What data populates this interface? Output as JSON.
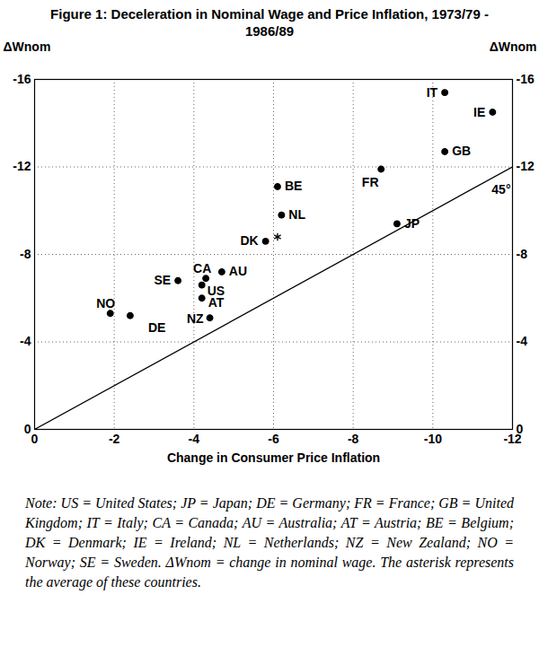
{
  "chart_data": {
    "type": "scatter",
    "title": "Figure 1: Deceleration in Nominal Wage and Price Inflation, 1973/79 - 1986/89",
    "x_label": "Change in Consumer Price Inflation",
    "y_label": "ΔWnom",
    "xlim": [
      0,
      -12
    ],
    "xticks": [
      0,
      -2,
      -4,
      -6,
      -8,
      -10,
      -12
    ],
    "ylim": [
      0,
      -16
    ],
    "yticks": [
      0,
      -4,
      -8,
      -12,
      -16
    ],
    "grid": true,
    "color": "#000000",
    "marker": "circle",
    "points": [
      {
        "label": "IT",
        "x": -10.3,
        "y": -15.4
      },
      {
        "label": "IE",
        "x": -11.5,
        "y": -14.5
      },
      {
        "label": "GB",
        "x": -10.3,
        "y": -12.7
      },
      {
        "label": "FR",
        "x": -8.7,
        "y": -11.9
      },
      {
        "label": "BE",
        "x": -6.1,
        "y": -11.1
      },
      {
        "label": "NL",
        "x": -6.2,
        "y": -9.8
      },
      {
        "label": "DK",
        "x": -5.8,
        "y": -8.6
      },
      {
        "label": "JP",
        "x": -9.1,
        "y": -9.4
      },
      {
        "label": "AU",
        "x": -4.7,
        "y": -7.2
      },
      {
        "label": "CA",
        "x": -4.3,
        "y": -6.9
      },
      {
        "label": "SE",
        "x": -3.6,
        "y": -6.8
      },
      {
        "label": "US",
        "x": -4.2,
        "y": -6.6
      },
      {
        "label": "AT",
        "x": -4.2,
        "y": -6.0
      },
      {
        "label": "NO",
        "x": -1.9,
        "y": -5.3
      },
      {
        "label": "DE",
        "x": -2.4,
        "y": -5.2
      },
      {
        "label": "NZ",
        "x": -4.4,
        "y": -5.1
      }
    ],
    "average": {
      "x": -6.1,
      "y": -8.8,
      "marker": "asterisk"
    },
    "reference_line": {
      "x": [
        0,
        -12
      ],
      "y": [
        0,
        -12
      ],
      "label": "45°"
    },
    "note": "Note: US = United States; JP = Japan; DE = Germany; FR = France; GB = United Kingdom; IT = Italy; CA = Canada; AU = Australia; AT = Austria; BE = Belgium; DK = Denmark; IE = Ireland; NL = Netherlands; NZ = New Zealand; NO = Norway; SE = Sweden. ΔWnom = change in nominal wage. The asterisk represents the average of these countries."
  }
}
